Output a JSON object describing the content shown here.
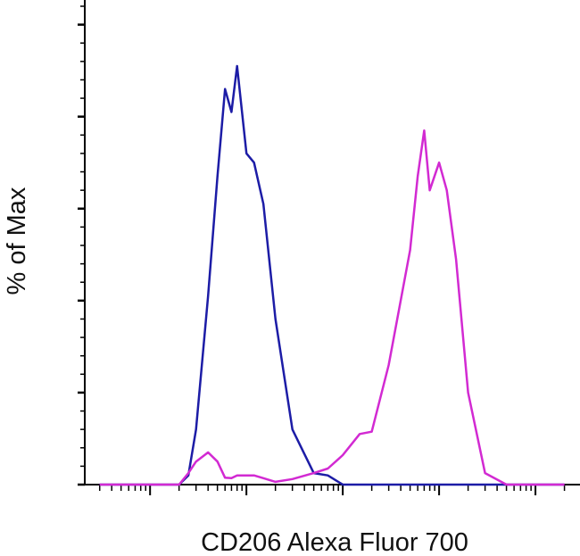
{
  "chart_data": {
    "type": "line",
    "ylabel": "% of Max",
    "xlabel": "CD206 Alexa Fluor 700",
    "xlog": true,
    "xlim": [
      21,
      2900000
    ],
    "ylim": [
      0,
      104
    ],
    "xticks": [
      100,
      1000,
      10000,
      100000,
      1000000
    ],
    "xminorticks": [
      30,
      40,
      50,
      60,
      70,
      80,
      90,
      200,
      300,
      400,
      500,
      600,
      700,
      800,
      900,
      2000,
      3000,
      4000,
      5000,
      6000,
      7000,
      8000,
      9000,
      20000,
      30000,
      40000,
      50000,
      60000,
      70000,
      80000,
      90000,
      200000,
      300000,
      400000,
      500000,
      600000,
      700000,
      800000,
      900000,
      2000000
    ],
    "yticks": [
      0,
      20,
      40,
      60,
      80,
      100
    ],
    "yminorticks": [
      4,
      8,
      12,
      16,
      24,
      28,
      32,
      36,
      44,
      48,
      52,
      56,
      64,
      68,
      72,
      76,
      84,
      88,
      92,
      96,
      104
    ],
    "x": [
      30,
      100,
      150,
      200,
      250,
      300,
      400,
      500,
      600,
      700,
      800,
      1000,
      1200,
      1500,
      2000,
      3000,
      5000,
      7000,
      10000,
      15000,
      20000,
      30000,
      50000,
      60000,
      70000,
      80000,
      100000,
      120000,
      150000,
      200000,
      300000,
      500000,
      1000000,
      2000000
    ],
    "series": [
      {
        "color": "#1c1ca6",
        "values": [
          0,
          0,
          0,
          0,
          2,
          12,
          41,
          67,
          86,
          81,
          91,
          72,
          70,
          61,
          36,
          12,
          2.5,
          2,
          0,
          0,
          0,
          0,
          0,
          0,
          0,
          0,
          0,
          0,
          0,
          0,
          0,
          0,
          0,
          0
        ]
      },
      {
        "color": "#d22ad2",
        "values": [
          0,
          0,
          0,
          0,
          2.5,
          5,
          7,
          5,
          1.5,
          1.4,
          2,
          2,
          2,
          1.4,
          0.6,
          1.2,
          2.5,
          3.5,
          6.4,
          11,
          11.5,
          26,
          51,
          67,
          77,
          64,
          70,
          64,
          49,
          20,
          2.5,
          0,
          0,
          0
        ]
      }
    ]
  }
}
